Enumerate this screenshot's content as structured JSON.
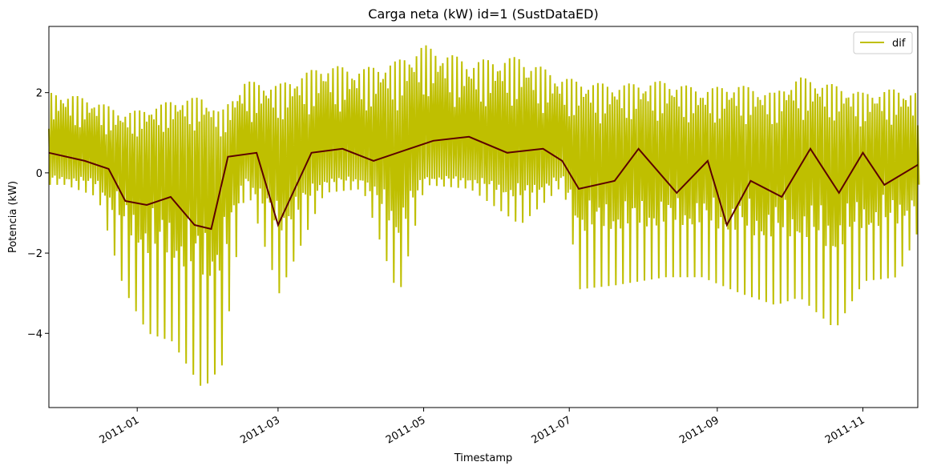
{
  "chart_data": {
    "type": "line",
    "title": "Carga neta (kW) id=1 (SustDataED)",
    "xlabel": "Timestamp",
    "ylabel": "Potencia (kW)",
    "x_range": [
      "2010-11-25",
      "2011-11-24"
    ],
    "ylim": [
      -5.85,
      3.65
    ],
    "x_ticks": [
      {
        "date": "2011-01-01",
        "label": "2011-01"
      },
      {
        "date": "2011-03-01",
        "label": "2011-03"
      },
      {
        "date": "2011-05-01",
        "label": "2011-05"
      },
      {
        "date": "2011-07-01",
        "label": "2011-07"
      },
      {
        "date": "2011-09-01",
        "label": "2011-09"
      },
      {
        "date": "2011-11-01",
        "label": "2011-11"
      }
    ],
    "y_ticks": [
      {
        "value": 2,
        "label": "2"
      },
      {
        "value": 0,
        "label": "0"
      },
      {
        "value": -2,
        "label": "−2"
      },
      {
        "value": -4,
        "label": "−4"
      }
    ],
    "grid": false,
    "legend": {
      "position": "top-right",
      "entries": [
        "dif"
      ]
    },
    "series": [
      {
        "name": "dif",
        "color": "#bfbf00",
        "style": "high-frequency signal drawn as daily min-max envelope",
        "x": [
          "2010-12-01",
          "2010-12-15",
          "2010-12-26",
          "2011-01-05",
          "2011-01-15",
          "2011-01-28",
          "2011-02-05",
          "2011-02-15",
          "2011-03-01",
          "2011-03-20",
          "2011-04-05",
          "2011-04-20",
          "2011-05-01",
          "2011-05-20",
          "2011-06-10",
          "2011-06-28",
          "2011-07-05",
          "2011-07-20",
          "2011-08-10",
          "2011-08-25",
          "2011-09-10",
          "2011-09-25",
          "2011-10-05",
          "2011-10-20",
          "2011-11-01",
          "2011-11-15",
          "2011-11-24"
        ],
        "y_max": [
          2.0,
          1.8,
          1.5,
          1.6,
          1.8,
          1.9,
          1.5,
          2.3,
          2.2,
          2.7,
          2.6,
          2.8,
          3.2,
          2.8,
          2.9,
          2.4,
          2.3,
          2.2,
          2.3,
          2.1,
          2.2,
          2.0,
          2.4,
          2.2,
          2.0,
          2.1,
          2.0
        ],
        "y_min": [
          -0.3,
          -0.6,
          -2.9,
          -4.0,
          -4.2,
          -5.4,
          -4.8,
          -0.3,
          -3.0,
          -0.5,
          -0.4,
          -3.1,
          -0.3,
          -0.4,
          -1.3,
          -0.3,
          -2.9,
          -2.8,
          -2.6,
          -2.6,
          -3.0,
          -3.3,
          -3.1,
          -3.9,
          -2.7,
          -2.6,
          -1.4
        ]
      },
      {
        "name": "",
        "color": "#5c0000",
        "x": [
          "2010-11-25",
          "2010-12-10",
          "2010-12-20",
          "2010-12-27",
          "2011-01-05",
          "2011-01-15",
          "2011-01-25",
          "2011-02-01",
          "2011-02-08",
          "2011-02-20",
          "2011-03-01",
          "2011-03-15",
          "2011-03-28",
          "2011-04-10",
          "2011-04-25",
          "2011-05-05",
          "2011-05-20",
          "2011-06-05",
          "2011-06-20",
          "2011-06-28",
          "2011-07-05",
          "2011-07-20",
          "2011-07-30",
          "2011-08-15",
          "2011-08-28",
          "2011-09-05",
          "2011-09-15",
          "2011-09-28",
          "2011-10-10",
          "2011-10-22",
          "2011-11-01",
          "2011-11-10",
          "2011-11-24"
        ],
        "y": [
          0.5,
          0.3,
          0.1,
          -0.7,
          -0.8,
          -0.6,
          -1.3,
          -1.4,
          0.4,
          0.5,
          -1.3,
          0.5,
          0.6,
          0.3,
          0.6,
          0.8,
          0.9,
          0.5,
          0.6,
          0.3,
          -0.4,
          -0.2,
          0.6,
          -0.5,
          0.3,
          -1.3,
          -0.2,
          -0.6,
          0.6,
          -0.5,
          0.5,
          -0.3,
          0.2
        ]
      }
    ]
  }
}
